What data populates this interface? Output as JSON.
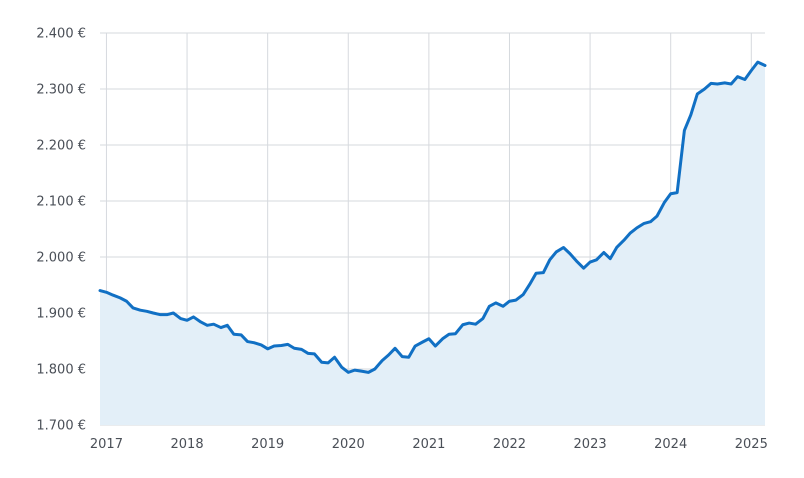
{
  "chart_data": {
    "type": "area",
    "title": "",
    "xlabel": "",
    "ylabel": "",
    "ylim": [
      1700,
      2400
    ],
    "xlim": [
      2016.92,
      2025.17
    ],
    "grid": true,
    "y_ticks": [
      {
        "value": 1700,
        "label": "1.700 €"
      },
      {
        "value": 1800,
        "label": "1.800 €"
      },
      {
        "value": 1900,
        "label": "1.900 €"
      },
      {
        "value": 2000,
        "label": "2.000 €"
      },
      {
        "value": 2100,
        "label": "2.100 €"
      },
      {
        "value": 2200,
        "label": "2.200 €"
      },
      {
        "value": 2300,
        "label": "2.300 €"
      },
      {
        "value": 2400,
        "label": "2.400 €"
      }
    ],
    "x_ticks": [
      {
        "value": 2017,
        "label": "2017"
      },
      {
        "value": 2018,
        "label": "2018"
      },
      {
        "value": 2019,
        "label": "2019"
      },
      {
        "value": 2020,
        "label": "2020"
      },
      {
        "value": 2021,
        "label": "2021"
      },
      {
        "value": 2022,
        "label": "2022"
      },
      {
        "value": 2023,
        "label": "2023"
      },
      {
        "value": 2024,
        "label": "2024"
      },
      {
        "value": 2025,
        "label": "2025"
      }
    ],
    "colors": {
      "line": "#1170c4",
      "fill": "#e3eff8",
      "grid": "#d6d9de",
      "text": "#4a4f57"
    },
    "series": [
      {
        "x": [
          2016.92,
          2017.0,
          2017.08,
          2017.17,
          2017.25,
          2017.33,
          2017.42,
          2017.5,
          2017.58,
          2017.67,
          2017.75,
          2017.83,
          2017.92,
          2018.0,
          2018.08,
          2018.17,
          2018.25,
          2018.33,
          2018.42,
          2018.5,
          2018.58,
          2018.67,
          2018.75,
          2018.83,
          2018.92,
          2019.0,
          2019.08,
          2019.17,
          2019.25,
          2019.33,
          2019.42,
          2019.5,
          2019.58,
          2019.67,
          2019.75,
          2019.83,
          2019.92,
          2020.0,
          2020.08,
          2020.17,
          2020.25,
          2020.33,
          2020.42,
          2020.5,
          2020.58,
          2020.67,
          2020.75,
          2020.83,
          2020.92,
          2021.0,
          2021.08,
          2021.17,
          2021.25,
          2021.33,
          2021.42,
          2021.5,
          2021.58,
          2021.67,
          2021.75,
          2021.83,
          2021.92,
          2022.0,
          2022.08,
          2022.17,
          2022.25,
          2022.33,
          2022.42,
          2022.5,
          2022.58,
          2022.67,
          2022.75,
          2022.83,
          2022.92,
          2023.0,
          2023.08,
          2023.17,
          2023.25,
          2023.33,
          2023.42,
          2023.5,
          2023.58,
          2023.67,
          2023.75,
          2023.83,
          2023.92,
          2024.0,
          2024.08,
          2024.17,
          2024.25,
          2024.33,
          2024.42,
          2024.5,
          2024.58,
          2024.67,
          2024.75,
          2024.83,
          2024.92,
          2025.0,
          2025.08,
          2025.17
        ],
        "values": [
          1940,
          1937,
          1932,
          1927,
          1921,
          1909,
          1905,
          1903,
          1900,
          1897,
          1897,
          1900,
          1890,
          1887,
          1893,
          1884,
          1878,
          1880,
          1874,
          1878,
          1862,
          1861,
          1849,
          1847,
          1843,
          1836,
          1841,
          1842,
          1844,
          1837,
          1835,
          1828,
          1827,
          1812,
          1811,
          1821,
          1803,
          1794,
          1798,
          1796,
          1794,
          1800,
          1815,
          1825,
          1837,
          1822,
          1821,
          1841,
          1848,
          1854,
          1841,
          1854,
          1862,
          1863,
          1879,
          1882,
          1880,
          1890,
          1912,
          1918,
          1912,
          1921,
          1923,
          1933,
          1951,
          1971,
          1972,
          1995,
          2009,
          2017,
          2006,
          1993,
          1980,
          1991,
          1995,
          2008,
          1997,
          2017,
          2030,
          2043,
          2052,
          2060,
          2063,
          2073,
          2097,
          2113,
          2115,
          2226,
          2254,
          2291,
          2300,
          2310,
          2309,
          2311,
          2309,
          2322,
          2317,
          2333,
          2348,
          2342
        ]
      }
    ]
  }
}
